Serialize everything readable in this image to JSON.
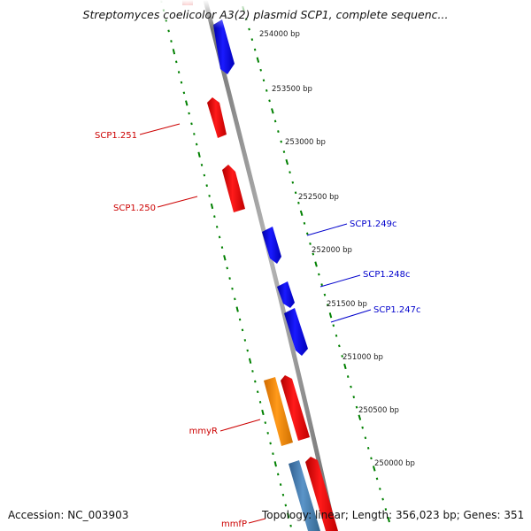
{
  "title": "Streptomyces coelicolor A3(2) plasmid SCP1, complete sequenc...",
  "accession": "Accession: NC_003903",
  "topology": "Topology: linear; Length: 356,023 bp; Genes: 351",
  "colors": {
    "forward_gene": "#ff0000",
    "reverse_gene": "#0000ff",
    "highlight_gene": "#ff8c00",
    "other_gene": "#4682b4",
    "forward_label": "#cc0000",
    "reverse_label": "#0000cc",
    "tick": "#008000",
    "backbone": "#888888",
    "ruler_text": "#222222"
  },
  "ruler": {
    "ticks": [
      {
        "label": "254000 bp"
      },
      {
        "label": "253500 bp"
      },
      {
        "label": "253000 bp"
      },
      {
        "label": "252500 bp"
      },
      {
        "label": "252000 bp"
      },
      {
        "label": "251500 bp"
      },
      {
        "label": "251000 bp"
      },
      {
        "label": "250500 bp"
      },
      {
        "label": "250000 bp"
      }
    ]
  },
  "gene_labels": [
    {
      "text": "SCP1.251",
      "strand": "forward"
    },
    {
      "text": "SCP1.250",
      "strand": "forward"
    },
    {
      "text": "SCP1.249c",
      "strand": "reverse"
    },
    {
      "text": "SCP1.248c",
      "strand": "reverse"
    },
    {
      "text": "SCP1.247c",
      "strand": "reverse"
    },
    {
      "text": "mmyR",
      "strand": "forward"
    },
    {
      "text": "mmfP",
      "strand": "forward"
    }
  ]
}
